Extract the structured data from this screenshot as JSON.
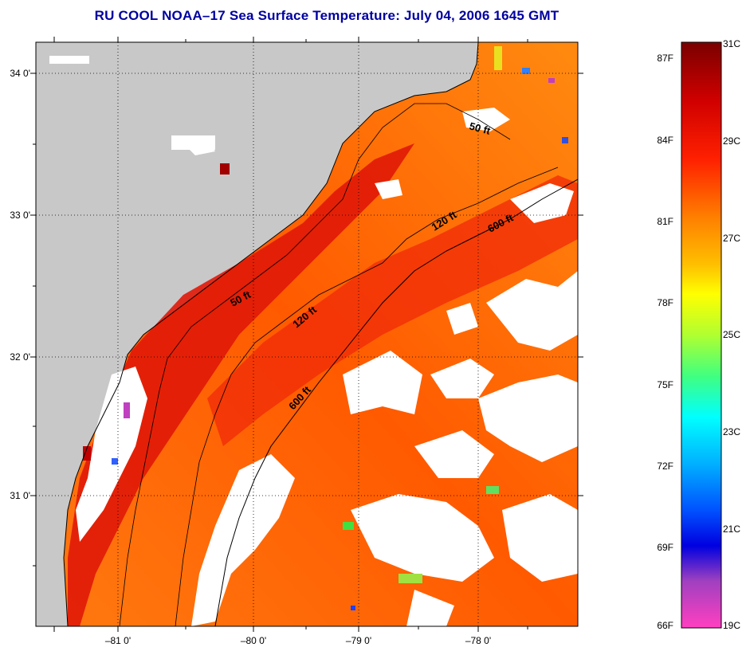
{
  "title": "RU COOL  NOAA–17  Sea Surface Temperature:  July 04, 2006 1645 GMT",
  "map": {
    "lat_labels": [
      "34 0'",
      "33 0'",
      "32 0'",
      "31 0'"
    ],
    "lon_labels": [
      "–81 0'",
      "–80 0'",
      "–79 0'",
      "–78 0'"
    ],
    "contour_labels": [
      "50 ft",
      "50 ft",
      "120 ft",
      "120 ft",
      "600 ft",
      "600 ft"
    ]
  },
  "colorbar": {
    "fahrenheit": [
      "87F",
      "84F",
      "81F",
      "78F",
      "75F",
      "72F",
      "69F",
      "66F"
    ],
    "celsius": [
      "31C",
      "29C",
      "27C",
      "25C",
      "23C",
      "21C",
      "19C"
    ],
    "colors": [
      "#7a0000",
      "#e00000",
      "#ff6000",
      "#ffff00",
      "#40ff40",
      "#00ffff",
      "#0060ff",
      "#0000e0",
      "#a040c0",
      "#ff40c0"
    ]
  }
}
